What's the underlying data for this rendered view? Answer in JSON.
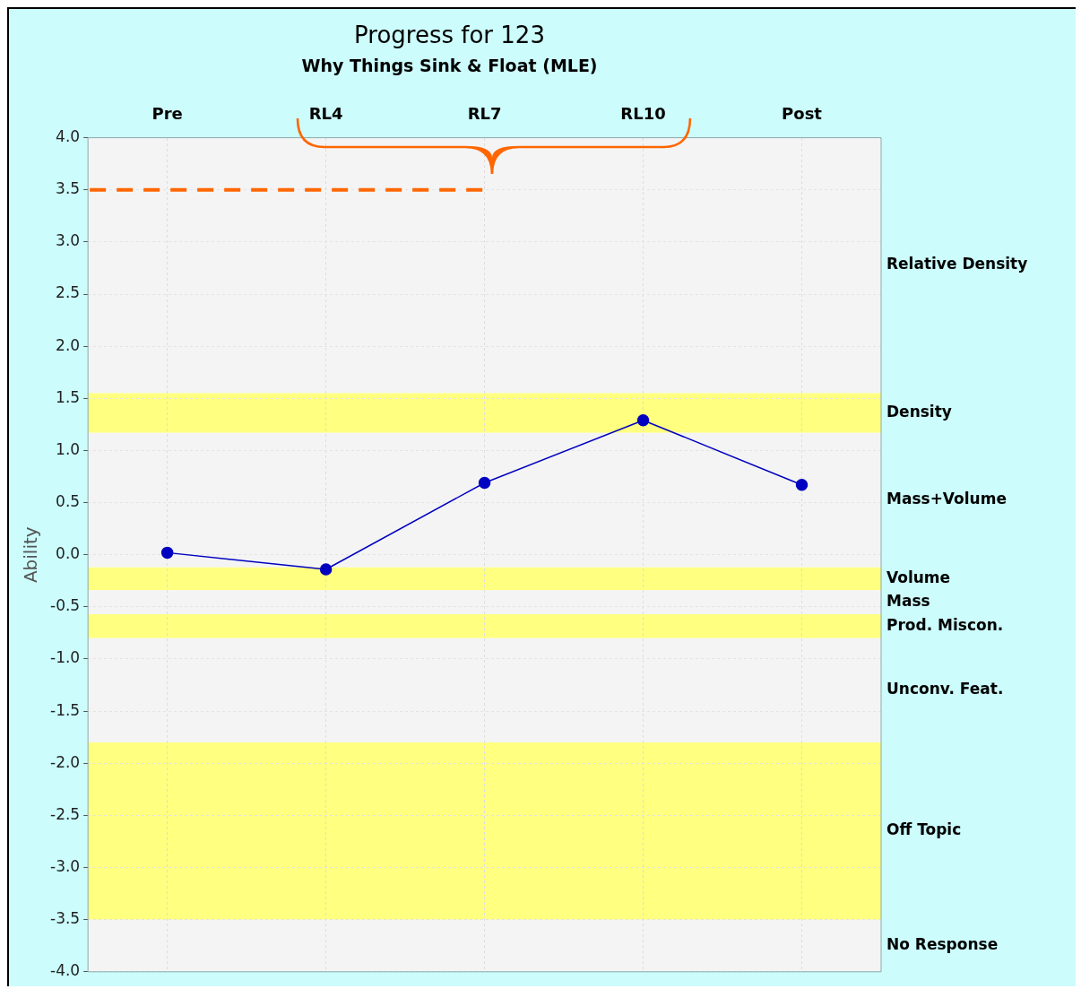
{
  "chart_data": {
    "type": "line",
    "title": "Progress for 123",
    "subtitle": "Why Things Sink & Float (MLE)",
    "ylabel": "Ability",
    "categories": [
      "Pre",
      "RL4",
      "RL7",
      "RL10",
      "Post"
    ],
    "series": [
      {
        "color": "#0000c0",
        "values": [
          0.02,
          -0.14,
          0.69,
          1.29,
          0.67
        ]
      }
    ],
    "ylim": [
      -4,
      4
    ],
    "yticks": [
      {
        "value": -4,
        "label": "-4.0"
      },
      {
        "value": -3.5,
        "label": "-3.5"
      },
      {
        "value": -3,
        "label": "-3.0"
      },
      {
        "value": -2.5,
        "label": "-2.5"
      },
      {
        "value": -2,
        "label": "-2.0"
      },
      {
        "value": -1.5,
        "label": "-1.5"
      },
      {
        "value": -1,
        "label": "-1.0"
      },
      {
        "value": -0.5,
        "label": "-0.5"
      },
      {
        "value": 0,
        "label": "0.0"
      },
      {
        "value": 0.5,
        "label": "0.5"
      },
      {
        "value": 1,
        "label": "1.0"
      },
      {
        "value": 1.5,
        "label": "1.5"
      },
      {
        "value": 2,
        "label": "2.0"
      },
      {
        "value": 2.5,
        "label": "2.5"
      },
      {
        "value": 3,
        "label": "3.0"
      },
      {
        "value": 3.5,
        "label": "3.5"
      },
      {
        "value": 4,
        "label": "4.0"
      }
    ],
    "bands": [
      {
        "axis": "y",
        "from": 1.55,
        "to": 4,
        "color": "#f4f4f4",
        "label": "Relative Density"
      },
      {
        "axis": "y",
        "from": 1.17,
        "to": 1.55,
        "color": "#ffff80",
        "label": "Density"
      },
      {
        "axis": "y",
        "from": -0.12,
        "to": 1.17,
        "color": "#f4f4f4",
        "label": "Mass+Volume"
      },
      {
        "axis": "y",
        "from": -0.34,
        "to": -0.12,
        "color": "#ffff80",
        "label": "Volume"
      },
      {
        "axis": "y",
        "from": -0.57,
        "to": -0.34,
        "color": "#f4f4f4",
        "label": "Mass"
      },
      {
        "axis": "y",
        "from": -0.8,
        "to": -0.57,
        "color": "#ffff80",
        "label": "Prod. Miscon."
      },
      {
        "axis": "y",
        "from": -1.8,
        "to": -0.8,
        "color": "#f4f4f4",
        "label": "Unconv. Feat."
      },
      {
        "axis": "y",
        "from": -3.5,
        "to": -1.8,
        "color": "#ffff80",
        "label": "Off Topic"
      },
      {
        "axis": "y",
        "from": -4,
        "to": -3.5,
        "color": "#f4f4f4",
        "label": "No Response"
      }
    ],
    "ref_lines": [
      {
        "axis": "y",
        "value": 3.5,
        "color": "#ff6600",
        "line_style": "dashed"
      }
    ],
    "grid": true,
    "marker": "circle",
    "line_style": "solid",
    "legend": false
  }
}
